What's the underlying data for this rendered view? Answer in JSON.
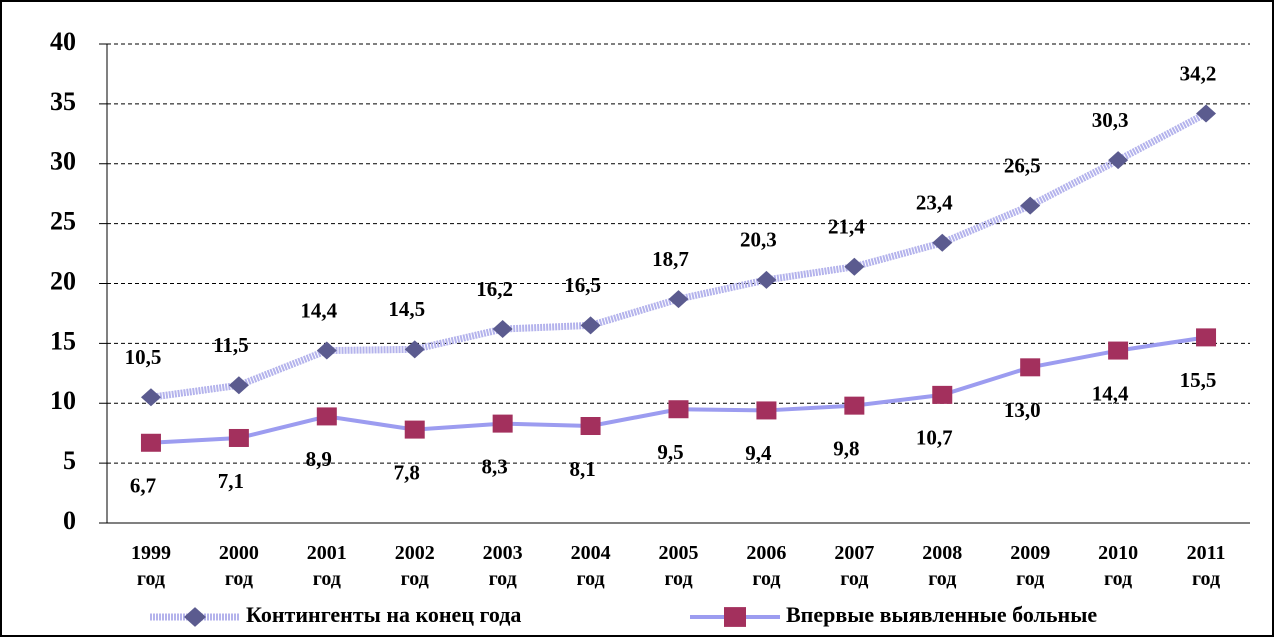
{
  "chart_data": {
    "type": "line",
    "categories": [
      "1999 год",
      "2000 год",
      "2001 год",
      "2002 год",
      "2003 год",
      "2004 год",
      "2005 год",
      "2006 год",
      "2007 год",
      "2008 год",
      "2009 год",
      "2010 год",
      "2011 год"
    ],
    "series": [
      {
        "name": "Контингенты на конец года",
        "color": "#5b5b8f",
        "line_color": "#b4b3ec",
        "marker": "diamond",
        "values": [
          10.5,
          11.5,
          14.4,
          14.5,
          16.2,
          16.5,
          18.7,
          20.3,
          21.4,
          23.4,
          26.5,
          30.3,
          34.2
        ],
        "value_labels": [
          "10,5",
          "11,5",
          "14,4",
          "14,5",
          "16,2",
          "16,5",
          "18,7",
          "20,3",
          "21,4",
          "23,4",
          "26,5",
          "30,3",
          "34,2"
        ]
      },
      {
        "name": "Впервые выявленные больные",
        "color": "#a3305d",
        "line_color": "#9c9cf0",
        "marker": "square",
        "values": [
          6.7,
          7.1,
          8.9,
          7.8,
          8.3,
          8.1,
          9.5,
          9.4,
          9.8,
          10.7,
          13.0,
          14.4,
          15.5
        ],
        "value_labels": [
          "6,7",
          "7,1",
          "8,9",
          "7,8",
          "8,3",
          "8,1",
          "9,5",
          "9,4",
          "9,8",
          "10,7",
          "13,0",
          "14,4",
          "15,5"
        ]
      }
    ],
    "ylim": [
      0,
      40
    ],
    "yticks": [
      0,
      5,
      10,
      15,
      20,
      25,
      30,
      35,
      40
    ],
    "grid": true,
    "legend": "bottom"
  }
}
